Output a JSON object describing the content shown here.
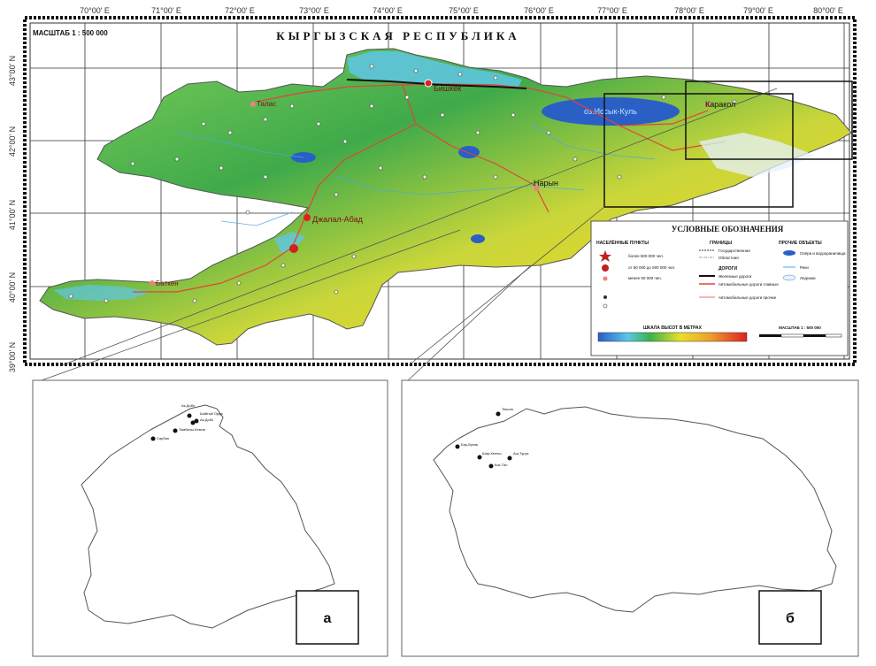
{
  "top_map": {
    "title": "КЫРГЫЗСКАЯ   РЕСПУБЛИКА",
    "scale_label": "МАСШТАБ 1 : 500 000",
    "longitudes": [
      "70°00' E",
      "71°00' E",
      "72°00' E",
      "73°00' E",
      "74°00' E",
      "75°00' E",
      "76°00' E",
      "77°00' E",
      "78°00' E",
      "79°00' E",
      "80°00' E"
    ],
    "latitudes": [
      "43°00' N",
      "42°00' N",
      "41°00' N",
      "40°00' N",
      "39°00' N"
    ],
    "cities": {
      "bishkek": "Бишкек",
      "talas": "Талас",
      "karakol": "Каракол",
      "naryn": "Нарын",
      "jalal_abad": "Джалал-Абад",
      "batken": "Баткен",
      "lake": "оз.Иссык-Куль"
    },
    "legend": {
      "title": "УСЛОВНЫЕ   ОБОЗНАЧЕНИЯ",
      "settlements_title": "НАСЕЛЁННЫЕ ПУНКТЫ",
      "borders_title": "ГРАНИЦЫ",
      "other_title": "ПРОЧИЕ ОБЪЕКТЫ",
      "roads_title": "ДОРОГИ",
      "elevation_title": "ШКАЛА ВЫСОТ В МЕТРАХ",
      "scale_title": "МАСШТАБ 1 : 500 000",
      "cap_row": "более 500 000 чел.",
      "osh_row": "от 50 000 до 500 000 чел.",
      "talas_row": "менее 50 000 чел.",
      "rail_row": "Железные дороги",
      "road1_row": "Автомобильные дороги главные",
      "road2_row": "Автомобильные дороги прочие",
      "state_border": "Государственная",
      "region_border": "Областная",
      "lakes_row": "Озёра и водохранилища",
      "rivers_row": "Реки",
      "glaciers_row": "Ледники"
    }
  },
  "panel_a": {
    "label": "а",
    "points": [
      "Ак-Добо",
      "Шайгый Орда",
      "Ак-Добо",
      "Тамбалы-Кемна",
      "Сарбан"
    ]
  },
  "panel_b": {
    "label": "б",
    "points": [
      "Тюштю",
      "Бар-Булак",
      "Шар-Кенеш",
      "Аш-Турук",
      "Кок-Тал"
    ]
  }
}
